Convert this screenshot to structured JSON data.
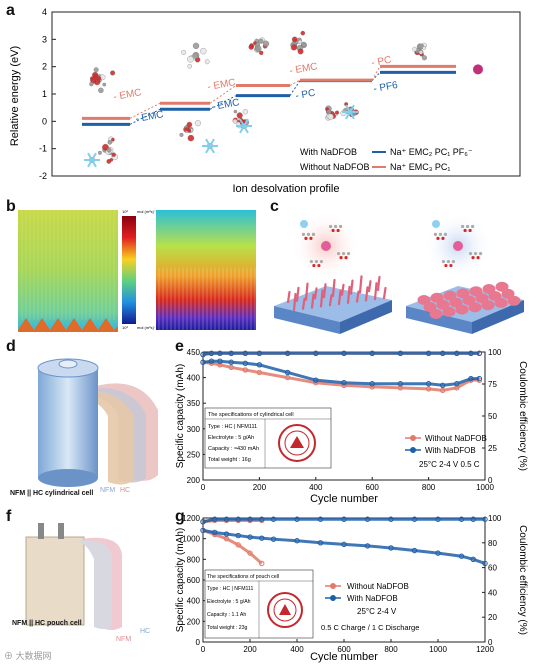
{
  "panels": {
    "a": {
      "label": "a",
      "ylabel": "Relative energy (eV)",
      "xlabel": "Ion desolvation profile",
      "yticks": [
        "4",
        "3",
        "2",
        "1",
        "0",
        "-1",
        "-2"
      ],
      "step_labels_blue": [
        "- EMC",
        "- EMC",
        "- PC",
        "- PF6"
      ],
      "step_labels_red": [
        "- EMC",
        "- EMC",
        "- EMC",
        "- PC"
      ],
      "legend": [
        {
          "name": "With NaDFOB",
          "structure": "Na⁺ EMC₂ PC₁ PF₆⁻",
          "color": "#1f5fa8"
        },
        {
          "name": "Without NaDFOB",
          "structure": "Na⁺ EMC₃ PC₁",
          "color": "#e07a6a"
        }
      ]
    },
    "b": {
      "label": "b",
      "colorbar_top": "10⁶",
      "colorbar_top_unit": "mol (m²s)⁻¹",
      "colorbar_bottom": "10³",
      "colorbar_bottom_unit": "mol (m²s)⁻¹"
    },
    "c": {
      "label": "c"
    },
    "d": {
      "label": "d",
      "caption": "NFM || HC  cylindrical cell",
      "nfm": "NFM",
      "hc": "HC"
    },
    "e": {
      "label": "e",
      "ylabel_left": "Specific capacity (mAh)",
      "ylabel_right": "Coulombic efficiency (%)",
      "xlabel": "Cycle number",
      "xticks": [
        "0",
        "200",
        "400",
        "600",
        "800",
        "1000"
      ],
      "yticks_left": [
        "450",
        "400",
        "350",
        "300",
        "250",
        "200"
      ],
      "yticks_right": [
        "100",
        "75",
        "50",
        "25",
        "0"
      ],
      "legend": [
        "Without NaDFOB",
        "With NaDFOB"
      ],
      "condition": "25°C 2-4 V 0.5 C",
      "spec_title": "The specifications of cylindrical cell",
      "spec_rows": [
        "Type : HC | NFM111",
        "Electrolyte : 5 g/Ah",
        "Capacity : ≈430 mAh",
        "Total weight : 16g"
      ]
    },
    "f": {
      "label": "f",
      "caption": "NFM || HC  pouch cell",
      "nfm": "NFM",
      "hc": "HC"
    },
    "g": {
      "label": "g",
      "ylabel_left": "Specific capacity (mAh)",
      "ylabel_right": "Coulombic efficiency (%)",
      "xlabel": "Cycle number",
      "xticks": [
        "0",
        "200",
        "400",
        "600",
        "800",
        "1000",
        "1200"
      ],
      "yticks_left": [
        "1200",
        "1000",
        "800",
        "600",
        "400",
        "200",
        "0"
      ],
      "yticks_right": [
        "100",
        "80",
        "60",
        "40",
        "20",
        "0"
      ],
      "legend": [
        "Without NaDFOB",
        "With NaDFOB"
      ],
      "condition": "25°C 2-4 V",
      "condition2": "0.5 C Charge / 1 C Discharge",
      "spec_title": "The specifications of pouch cell",
      "spec_rows": [
        "Type : HC | NFM111",
        "Electrolyte : 5 g/Ah",
        "Capacity : 1.1 Ah",
        "Total weight : 23g"
      ]
    }
  },
  "watermark": "⊕ 大数据网",
  "colors": {
    "blue": "#1f5fa8",
    "red": "#e07a6a",
    "red_dark": "#c4544a"
  },
  "chart_data": [
    {
      "type": "line",
      "name": "a",
      "ylim": [
        -2,
        4
      ],
      "series": [
        {
          "name": "With NaDFOB",
          "steps": [
            0,
            0.55,
            1.05,
            1.6,
            1.9
          ]
        },
        {
          "name": "Without NaDFOB",
          "steps": [
            0,
            0.55,
            1.2,
            1.4,
            1.9
          ]
        }
      ]
    },
    {
      "type": "line",
      "name": "e",
      "x": [
        0,
        30,
        60,
        100,
        150,
        200,
        300,
        400,
        500,
        600,
        700,
        800,
        850,
        900,
        950,
        980
      ],
      "xlim": [
        0,
        1000
      ],
      "ylim_left": [
        200,
        450
      ],
      "ylim_right": [
        0,
        100
      ],
      "series": [
        {
          "name": "Without NaDFOB",
          "axis": "left",
          "values": [
            430,
            428,
            425,
            420,
            415,
            410,
            400,
            390,
            385,
            382,
            380,
            378,
            375,
            380,
            395,
            395
          ]
        },
        {
          "name": "With NaDFOB",
          "axis": "left",
          "values": [
            430,
            432,
            432,
            430,
            428,
            425,
            410,
            395,
            390,
            388,
            388,
            388,
            385,
            388,
            398,
            398
          ]
        },
        {
          "name": "Without NaDFOB CE",
          "axis": "right",
          "values": [
            98,
            99,
            99,
            99,
            99,
            99,
            99,
            99,
            99,
            99,
            99,
            99,
            99,
            99,
            99,
            99
          ]
        },
        {
          "name": "With NaDFOB CE",
          "axis": "right",
          "values": [
            98,
            99,
            99,
            99,
            99,
            99,
            99,
            99,
            99,
            99,
            99,
            99,
            99,
            99,
            99,
            99
          ]
        }
      ]
    },
    {
      "type": "line",
      "name": "g",
      "x": [
        0,
        50,
        100,
        150,
        200,
        250,
        300,
        400,
        500,
        600,
        700,
        800,
        900,
        1000,
        1100,
        1150,
        1200
      ],
      "xlim": [
        0,
        1200
      ],
      "ylim_left": [
        0,
        1200
      ],
      "ylim_right": [
        0,
        100
      ],
      "series": [
        {
          "name": "Without NaDFOB",
          "axis": "left",
          "values": [
            1080,
            1040,
            1000,
            940,
            860,
            760,
            null,
            null,
            null,
            null,
            null,
            null,
            null,
            null,
            null,
            null,
            null
          ]
        },
        {
          "name": "With NaDFOB",
          "axis": "left",
          "values": [
            1080,
            1060,
            1045,
            1030,
            1015,
            1005,
            995,
            980,
            960,
            945,
            930,
            910,
            885,
            860,
            830,
            800,
            760
          ]
        },
        {
          "name": "Without NaDFOB CE",
          "axis": "right",
          "values": [
            97,
            98,
            98,
            98,
            98,
            98,
            null,
            null,
            null,
            null,
            null,
            null,
            null,
            null,
            null,
            null,
            null
          ]
        },
        {
          "name": "With NaDFOB CE",
          "axis": "right",
          "values": [
            97,
            99,
            99,
            99,
            99,
            99,
            99,
            99,
            99,
            99,
            99,
            99,
            99,
            99,
            99,
            99,
            99
          ]
        }
      ]
    }
  ]
}
